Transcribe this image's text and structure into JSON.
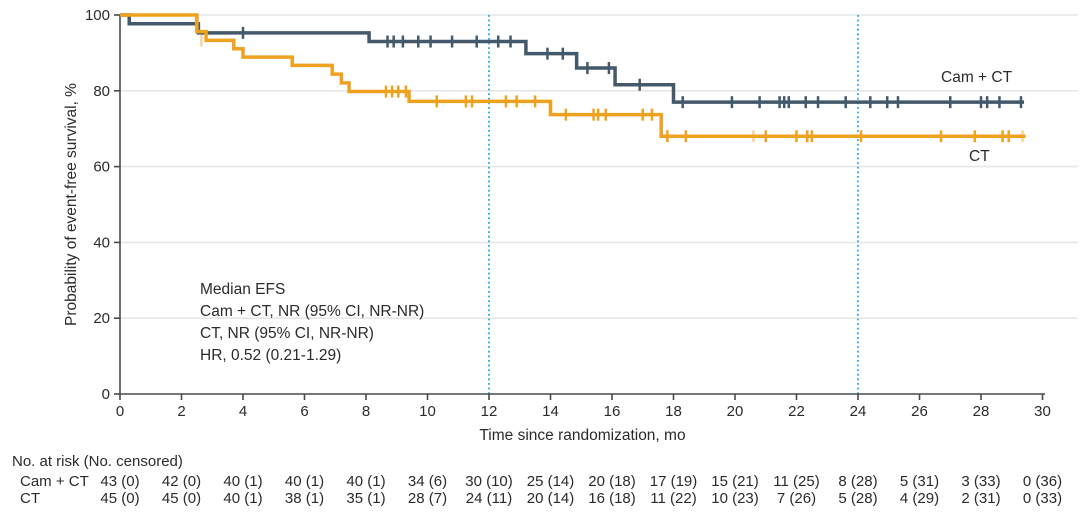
{
  "colors": {
    "camct": "#44596B",
    "ct": "#EFA21F",
    "reference_line": "#36B3E4",
    "grid": "#E6E6E6",
    "axis": "#4A4A4A",
    "text": "#2B2B2B"
  },
  "chart_data": {
    "type": "line",
    "subtype": "kaplan-meier-step",
    "title": "",
    "xlabel": "Time since randomization, mo",
    "ylabel": "Probability of event-free survival, %",
    "xlim": [
      0,
      30
    ],
    "ylim": [
      0,
      100
    ],
    "xticks": [
      0,
      2,
      4,
      6,
      8,
      10,
      12,
      14,
      16,
      18,
      20,
      22,
      24,
      26,
      28,
      30
    ],
    "yticks": [
      0,
      20,
      40,
      60,
      80,
      100
    ],
    "grid": "horizontal",
    "legend_position": "on-curve",
    "reference_lines_x": [
      12,
      24
    ],
    "annotation": {
      "lines": [
        "Median EFS",
        "Cam + CT, NR (95% CI, NR-NR)",
        "CT, NR (95% CI, NR-NR)",
        "HR, 0.52 (0.21-1.29)"
      ]
    },
    "series": [
      {
        "name": "Cam + CT",
        "color_key": "camct",
        "steps": [
          [
            0,
            100
          ],
          [
            0.3,
            97.7
          ],
          [
            2.55,
            95.3
          ],
          [
            8.1,
            93.0
          ],
          [
            13.2,
            89.8
          ],
          [
            14.85,
            86.0
          ],
          [
            16.1,
            81.6
          ],
          [
            18.0,
            77.0
          ]
        ],
        "end_time": 29.4,
        "censors": [
          [
            4.0,
            95.3
          ],
          [
            8.7,
            93.0
          ],
          [
            8.9,
            93.0
          ],
          [
            9.2,
            93.0
          ],
          [
            9.7,
            93.0
          ],
          [
            10.1,
            93.0
          ],
          [
            10.8,
            93.0
          ],
          [
            11.6,
            93.0
          ],
          [
            12.3,
            93.0
          ],
          [
            12.7,
            93.0
          ],
          [
            13.9,
            89.8
          ],
          [
            14.4,
            89.8
          ],
          [
            15.2,
            86.0
          ],
          [
            15.9,
            86.0
          ],
          [
            16.9,
            81.6
          ],
          [
            18.3,
            77.0
          ],
          [
            19.9,
            77.0
          ],
          [
            20.8,
            77.0
          ],
          [
            21.45,
            77.0
          ],
          [
            21.6,
            77.0
          ],
          [
            21.75,
            77.0
          ],
          [
            22.3,
            77.0
          ],
          [
            22.7,
            77.0
          ],
          [
            23.6,
            77.0
          ],
          [
            24.4,
            77.0
          ],
          [
            24.95,
            77.0
          ],
          [
            25.3,
            77.0
          ],
          [
            27.0,
            77.0
          ],
          [
            28.0,
            77.0
          ],
          [
            28.2,
            77.0
          ],
          [
            28.6,
            77.0
          ],
          [
            29.3,
            77.0
          ]
        ],
        "light_censors": []
      },
      {
        "name": "CT",
        "color_key": "ct",
        "steps": [
          [
            0,
            100
          ],
          [
            2.5,
            95.6
          ],
          [
            2.8,
            93.3
          ],
          [
            3.7,
            91.1
          ],
          [
            4.0,
            88.9
          ],
          [
            5.6,
            86.7
          ],
          [
            6.9,
            84.4
          ],
          [
            7.2,
            82.1
          ],
          [
            7.45,
            79.8
          ],
          [
            9.4,
            77.2
          ],
          [
            14.0,
            73.7
          ],
          [
            17.6,
            68.0
          ]
        ],
        "end_time": 29.45,
        "censors": [
          [
            8.65,
            79.8
          ],
          [
            8.85,
            79.8
          ],
          [
            9.05,
            79.8
          ],
          [
            9.3,
            79.8
          ],
          [
            10.3,
            77.2
          ],
          [
            11.25,
            77.2
          ],
          [
            11.45,
            77.2
          ],
          [
            12.55,
            77.2
          ],
          [
            12.9,
            77.2
          ],
          [
            13.5,
            77.2
          ],
          [
            14.5,
            73.7
          ],
          [
            15.4,
            73.7
          ],
          [
            15.55,
            73.7
          ],
          [
            15.8,
            73.7
          ],
          [
            17.0,
            73.7
          ],
          [
            17.3,
            73.7
          ],
          [
            17.8,
            68.0
          ],
          [
            18.4,
            68.0
          ],
          [
            21.0,
            68.0
          ],
          [
            22.0,
            68.0
          ],
          [
            22.35,
            68.0
          ],
          [
            22.5,
            68.0
          ],
          [
            24.1,
            68.0
          ],
          [
            26.7,
            68.0
          ],
          [
            27.8,
            68.0
          ],
          [
            28.7,
            68.0
          ],
          [
            28.9,
            68.0
          ]
        ],
        "light_censors": [
          [
            2.65,
            93.3
          ],
          [
            20.6,
            68.0
          ],
          [
            29.35,
            68.0
          ]
        ]
      }
    ]
  },
  "risk_table": {
    "header": "No. at risk (No. censored)",
    "rows": [
      {
        "label": "Cam + CT",
        "values": [
          "43 (0)",
          "42 (0)",
          "40 (1)",
          "40 (1)",
          "40 (1)",
          "34 (6)",
          "30 (10)",
          "25 (14)",
          "20 (18)",
          "17 (19)",
          "15 (21)",
          "11 (25)",
          "8 (28)",
          "5 (31)",
          "3 (33)",
          "0 (36)"
        ]
      },
      {
        "label": "CT",
        "values": [
          "45 (0)",
          "45 (0)",
          "40 (1)",
          "38 (1)",
          "35 (1)",
          "28 (7)",
          "24 (11)",
          "20 (14)",
          "16 (18)",
          "11 (22)",
          "10 (23)",
          "7 (26)",
          "5 (28)",
          "4 (29)",
          "2 (31)",
          "0 (33)"
        ]
      }
    ]
  }
}
